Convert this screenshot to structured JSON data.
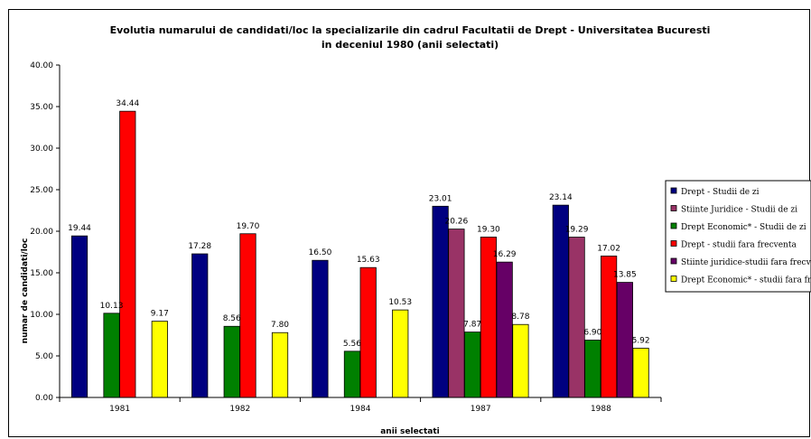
{
  "chart_data": {
    "type": "bar",
    "title": "Evolutia numarului de candidati/loc la specializarile din cadrul Facultatii de Drept - Universitatea Bucuresti",
    "subtitle": "in deceniul 1980 (anii selectati)",
    "xlabel": "anii selectati",
    "ylabel": "numar de candidati/loc",
    "ylim": [
      0,
      40
    ],
    "ytick_step": 5,
    "ytick_labels": [
      "0.00",
      "5.00",
      "10.00",
      "15.00",
      "20.00",
      "25.00",
      "30.00",
      "35.00",
      "40.00"
    ],
    "grid": false,
    "legend_position": "right",
    "categories": [
      "1981",
      "1982",
      "1984",
      "1987",
      "1988"
    ],
    "series": [
      {
        "name": "Drept - Studii de zi",
        "color": "#000080",
        "values": [
          19.44,
          17.28,
          16.5,
          23.01,
          23.14
        ],
        "labels": [
          "19.44",
          "17.28",
          "16.50",
          "23.01",
          "23.14"
        ]
      },
      {
        "name": "Stiinte Juridice - Studii de zi",
        "color": "#993366",
        "values": [
          null,
          null,
          null,
          20.26,
          19.29
        ],
        "labels": [
          null,
          null,
          null,
          "20.26",
          "19.29"
        ]
      },
      {
        "name": "Drept Economic* - Studii de zi",
        "color": "#008000",
        "values": [
          10.13,
          8.56,
          5.56,
          7.87,
          6.9
        ],
        "labels": [
          "10.13",
          "8.56",
          "5.56",
          "7.87",
          "6.90"
        ]
      },
      {
        "name": "Drept - studii fara frecventa",
        "color": "#ff0000",
        "values": [
          34.44,
          19.7,
          15.63,
          19.3,
          17.02
        ],
        "labels": [
          "34.44",
          "19.70",
          "15.63",
          "19.30",
          "17.02"
        ]
      },
      {
        "name": "Stiinte juridice-studii fara frecventa",
        "color": "#660066",
        "values": [
          null,
          null,
          null,
          16.29,
          13.85
        ],
        "labels": [
          null,
          null,
          null,
          "16.29",
          "13.85"
        ]
      },
      {
        "name": "Drept Economic* - studii fara frecventa",
        "color": "#ffff00",
        "values": [
          9.17,
          7.8,
          10.53,
          8.78,
          5.92
        ],
        "labels": [
          "9.17",
          "7.80",
          "10.53",
          "8.78",
          "5.92"
        ]
      }
    ]
  }
}
